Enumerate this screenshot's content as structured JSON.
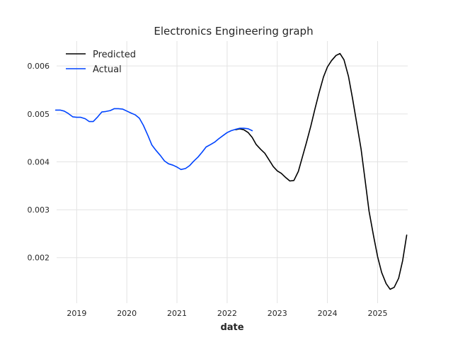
{
  "chart_data": {
    "type": "line",
    "title": "Electronics Engineering graph",
    "xlabel": "date",
    "ylabel": "",
    "x_ticks": [
      "2019",
      "2020",
      "2021",
      "2022",
      "2023",
      "2024",
      "2025"
    ],
    "y_ticks": [
      "0.002",
      "0.003",
      "0.004",
      "0.005",
      "0.006"
    ],
    "xlim": [
      2018.6,
      2025.6
    ],
    "ylim": [
      0.00105,
      0.00652
    ],
    "grid": true,
    "legend_position": "top-left",
    "series": [
      {
        "name": "Predicted",
        "color": "#000000",
        "x": [
          2022.17,
          2022.25,
          2022.33,
          2022.42,
          2022.5,
          2022.58,
          2022.67,
          2022.75,
          2022.83,
          2022.92,
          2023.0,
          2023.08,
          2023.17,
          2023.25,
          2023.33,
          2023.42,
          2023.5,
          2023.58,
          2023.67,
          2023.75,
          2023.83,
          2023.92,
          2024.0,
          2024.08,
          2024.17,
          2024.25,
          2024.33,
          2024.42,
          2024.5,
          2024.58,
          2024.67,
          2024.75,
          2024.83,
          2024.92,
          2025.0,
          2025.08,
          2025.17,
          2025.25,
          2025.33,
          2025.42,
          2025.5,
          2025.58
        ],
        "values": [
          0.00467,
          0.00469,
          0.00467,
          0.00461,
          0.00451,
          0.00436,
          0.00426,
          0.00418,
          0.00405,
          0.0039,
          0.00381,
          0.00376,
          0.00367,
          0.0036,
          0.00361,
          0.0038,
          0.0041,
          0.0044,
          0.00475,
          0.0051,
          0.00543,
          0.00577,
          0.00598,
          0.00611,
          0.00622,
          0.00626,
          0.00613,
          0.00578,
          0.00532,
          0.00483,
          0.00427,
          0.00362,
          0.00297,
          0.00245,
          0.00202,
          0.00169,
          0.00146,
          0.00134,
          0.00138,
          0.00157,
          0.00194,
          0.00247
        ]
      },
      {
        "name": "Actual",
        "color": "#0044ff",
        "x": [
          2018.58,
          2018.67,
          2018.75,
          2018.83,
          2018.92,
          2019.0,
          2019.08,
          2019.17,
          2019.25,
          2019.33,
          2019.42,
          2019.5,
          2019.58,
          2019.67,
          2019.75,
          2019.83,
          2019.92,
          2020.0,
          2020.08,
          2020.17,
          2020.25,
          2020.33,
          2020.42,
          2020.5,
          2020.58,
          2020.67,
          2020.75,
          2020.83,
          2020.92,
          2021.0,
          2021.08,
          2021.17,
          2021.25,
          2021.33,
          2021.42,
          2021.5,
          2021.58,
          2021.67,
          2021.75,
          2021.83,
          2021.92,
          2022.0,
          2022.08,
          2022.17,
          2022.25,
          2022.33,
          2022.42,
          2022.5
        ],
        "values": [
          0.00508,
          0.00508,
          0.00506,
          0.00501,
          0.00494,
          0.00493,
          0.00493,
          0.0049,
          0.00484,
          0.00484,
          0.00494,
          0.00504,
          0.00505,
          0.00507,
          0.00511,
          0.00511,
          0.0051,
          0.00506,
          0.00502,
          0.00498,
          0.00491,
          0.00476,
          0.00455,
          0.00435,
          0.00424,
          0.00413,
          0.00402,
          0.00396,
          0.00393,
          0.00389,
          0.00384,
          0.00386,
          0.00392,
          0.00401,
          0.0041,
          0.0042,
          0.00431,
          0.00436,
          0.00441,
          0.00448,
          0.00455,
          0.00461,
          0.00465,
          0.00468,
          0.0047,
          0.0047,
          0.00469,
          0.00465
        ]
      }
    ]
  }
}
